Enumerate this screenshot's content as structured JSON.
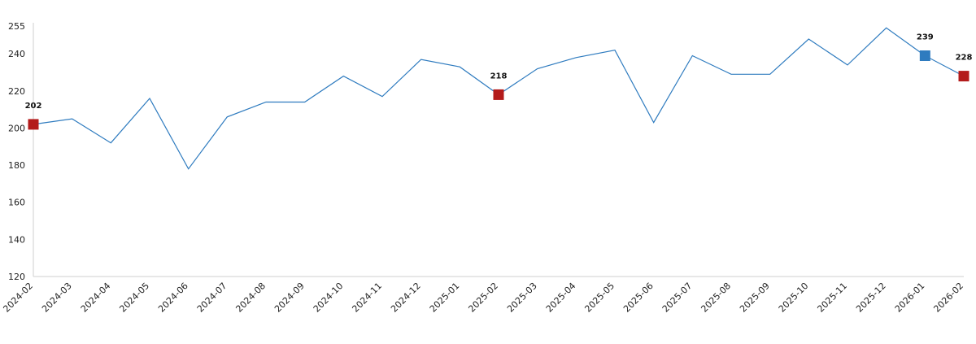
{
  "chart_data": {
    "type": "line",
    "title": "",
    "xlabel": "",
    "ylabel": "",
    "x": [
      "2024-02",
      "2024-03",
      "2024-04",
      "2024-05",
      "2024-06",
      "2024-07",
      "2024-08",
      "2024-09",
      "2024-10",
      "2024-11",
      "2024-12",
      "2025-01",
      "2025-02",
      "2025-03",
      "2025-04",
      "2025-05",
      "2025-06",
      "2025-07",
      "2025-08",
      "2025-09",
      "2025-10",
      "2025-11",
      "2025-12",
      "2026-01",
      "2026-02"
    ],
    "series": [
      {
        "values": [
          202,
          205,
          192,
          216,
          178,
          206,
          214,
          214,
          228,
          217,
          237,
          233,
          218,
          232,
          238,
          242,
          203,
          239,
          229,
          229,
          248,
          234,
          254,
          239,
          228
        ]
      }
    ],
    "ylim": [
      120,
      255
    ],
    "yticks": [
      120,
      140,
      160,
      180,
      200,
      220,
      240,
      255
    ],
    "grid": false,
    "colors": {
      "line": "#2e7bbf",
      "marker_highlight": "#b31b1b",
      "marker_latest": "#2e7bbf"
    },
    "annotations": [
      {
        "x": "2024-02",
        "value": 202,
        "label": "202",
        "marker": "square",
        "color": "#b31b1b"
      },
      {
        "x": "2025-02",
        "value": 218,
        "label": "218",
        "marker": "square",
        "color": "#b31b1b"
      },
      {
        "x": "2026-01",
        "value": 239,
        "label": "239",
        "marker": "square",
        "color": "#2e7bbf"
      },
      {
        "x": "2026-02",
        "value": 228,
        "label": "228",
        "marker": "square",
        "color": "#b31b1b"
      }
    ]
  }
}
